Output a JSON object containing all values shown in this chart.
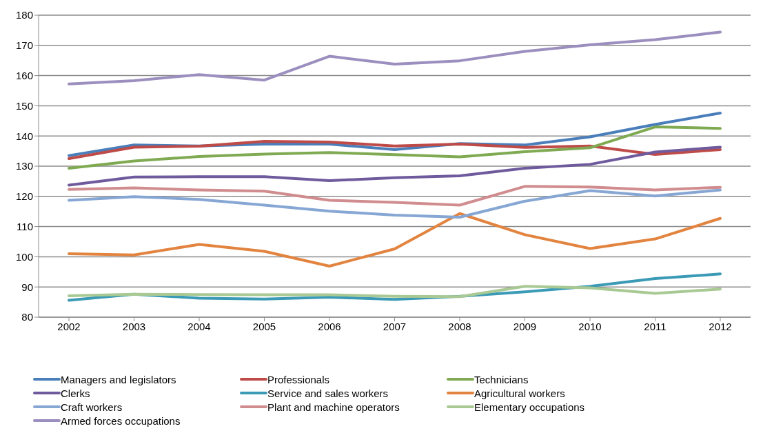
{
  "chart_data": {
    "type": "line",
    "categories": [
      "2002",
      "2003",
      "2004",
      "2005",
      "2006",
      "2007",
      "2008",
      "2009",
      "2010",
      "2011",
      "2012"
    ],
    "series": [
      {
        "name": "Managers and legislators",
        "color": "#4a7ebb",
        "values": [
          133.5,
          137,
          136.7,
          137.3,
          137.3,
          135.5,
          137.5,
          137,
          139.7,
          143.8,
          147.6
        ]
      },
      {
        "name": "Professionals",
        "color": "#be4b48",
        "values": [
          132.5,
          136.3,
          136.6,
          138.2,
          138,
          136.7,
          137.3,
          136.2,
          136.7,
          133.9,
          135.5
        ]
      },
      {
        "name": "Technicians",
        "color": "#7faa52",
        "values": [
          129.3,
          131.7,
          133.2,
          134,
          134.5,
          133.8,
          133.1,
          134.8,
          136.1,
          143,
          142.5
        ]
      },
      {
        "name": "Clerks",
        "color": "#6e5a9c",
        "values": [
          123.7,
          126.4,
          126.5,
          126.5,
          125.2,
          126.2,
          126.8,
          129.3,
          130.6,
          134.7,
          136.3
        ]
      },
      {
        "name": "Service and sales workers",
        "color": "#3b9ab6",
        "values": [
          85.6,
          87.6,
          86.3,
          86,
          86.6,
          85.9,
          86.9,
          88.4,
          90.2,
          92.8,
          94.3
        ]
      },
      {
        "name": "Agricultural workers",
        "color": "#e2843f",
        "values": [
          101,
          100.6,
          104.1,
          101.8,
          96.9,
          102.6,
          114.3,
          107.3,
          102.7,
          105.9,
          112.7
        ]
      },
      {
        "name": "Craft workers",
        "color": "#86a6d4",
        "values": [
          118.7,
          119.9,
          119,
          117.1,
          115.1,
          113.8,
          113.1,
          118.4,
          121.9,
          120.1,
          122.1
        ]
      },
      {
        "name": "Plant and machine operators",
        "color": "#d08c8e",
        "values": [
          122.3,
          122.8,
          122.1,
          121.7,
          118.7,
          118,
          117.1,
          123.3,
          123.1,
          122.1,
          123
        ]
      },
      {
        "name": "Elementary occupations",
        "color": "#a8c993",
        "values": [
          87.1,
          87.6,
          87.5,
          87.4,
          87.4,
          86.9,
          86.8,
          90.2,
          89.7,
          87.9,
          89.3
        ]
      },
      {
        "name": "Armed forces occupations",
        "color": "#9c8fbf",
        "values": [
          157.2,
          158.3,
          160.3,
          158.5,
          166.4,
          163.8,
          164.9,
          168,
          170.2,
          171.9,
          174.4
        ]
      }
    ],
    "ylim": [
      80,
      180
    ],
    "yticks": [
      80,
      90,
      100,
      110,
      120,
      130,
      140,
      150,
      160,
      170,
      180
    ],
    "grid": "y",
    "legend": "bottom",
    "marker": "none",
    "line_style": "solid"
  }
}
